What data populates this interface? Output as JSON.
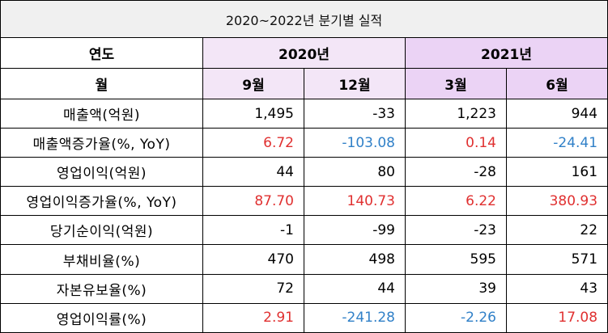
{
  "title": "2020~2022년 분기별 실적",
  "header": {
    "year_label": "연도",
    "month_label": "월",
    "years": [
      "2020년",
      "2021년"
    ],
    "quarters": [
      "9월",
      "12월",
      "3월",
      "6월"
    ]
  },
  "colors": {
    "header_2020": "#f3e6f7",
    "header_2021": "#ebd3f5",
    "positive_highlight": "#e03030",
    "negative_highlight": "#3080c8"
  },
  "rows": [
    {
      "label": "매출액(억원)",
      "values": [
        "1,495",
        "-33",
        "1,223",
        "944"
      ],
      "tones": [
        "",
        "",
        "",
        ""
      ]
    },
    {
      "label": "매출액증가율(%, YoY)",
      "values": [
        "6.72",
        "-103.08",
        "0.14",
        "-24.41"
      ],
      "tones": [
        "pos",
        "neg",
        "pos",
        "neg"
      ]
    },
    {
      "label": "영업이익(억원)",
      "values": [
        "44",
        "80",
        "-28",
        "161"
      ],
      "tones": [
        "",
        "",
        "",
        ""
      ]
    },
    {
      "label": "영업이익증가율(%, YoY)",
      "values": [
        "87.70",
        "140.73",
        "6.22",
        "380.93"
      ],
      "tones": [
        "pos",
        "pos",
        "pos",
        "pos"
      ]
    },
    {
      "label": "당기순이익(억원)",
      "values": [
        "-1",
        "-99",
        "-23",
        "22"
      ],
      "tones": [
        "",
        "",
        "",
        ""
      ]
    },
    {
      "label": "부채비율(%)",
      "values": [
        "470",
        "498",
        "595",
        "571"
      ],
      "tones": [
        "",
        "",
        "",
        ""
      ]
    },
    {
      "label": "자본유보율(%)",
      "values": [
        "72",
        "44",
        "39",
        "43"
      ],
      "tones": [
        "",
        "",
        "",
        ""
      ]
    },
    {
      "label": "영업이익률(%)",
      "values": [
        "2.91",
        "-241.28",
        "-2.26",
        "17.08"
      ],
      "tones": [
        "pos",
        "neg",
        "neg",
        "pos"
      ]
    }
  ]
}
